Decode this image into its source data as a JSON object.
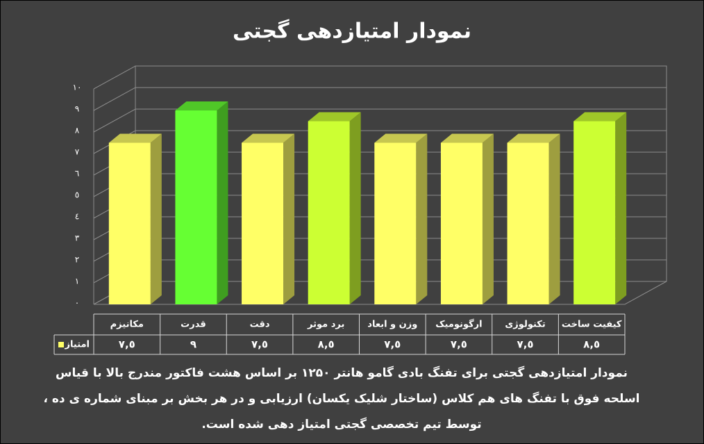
{
  "chart_data": {
    "type": "bar3d",
    "title": "نمودار امتیازدهی گجتی",
    "categories": [
      "مکانیزم",
      "قدرت",
      "دقت",
      "برد موثر",
      "وزن و ابعاد",
      "ارگونومیک",
      "تکنولوژی",
      "کیفیت ساخت"
    ],
    "series": [
      {
        "name": "امتیاز",
        "color": "#ffff66",
        "values": [
          7.5,
          9,
          7.5,
          8.5,
          7.5,
          7.5,
          7.5,
          8.5
        ],
        "value_labels": [
          "٧,٥",
          "٩",
          "٧,٥",
          "٨,٥",
          "٧,٥",
          "٧,٥",
          "٧,٥",
          "٨,٥"
        ],
        "colors": [
          "#ffff66",
          "#66ff33",
          "#ffff66",
          "#ccff33",
          "#ffff66",
          "#ffff66",
          "#ffff66",
          "#ccff33"
        ]
      }
    ],
    "ylim": [
      0,
      10
    ],
    "yticks": [
      {
        "value": 0,
        "label": "٠"
      },
      {
        "value": 1,
        "label": "١"
      },
      {
        "value": 2,
        "label": "٢"
      },
      {
        "value": 3,
        "label": "٣"
      },
      {
        "value": 4,
        "label": "٤"
      },
      {
        "value": 5,
        "label": "٥"
      },
      {
        "value": 6,
        "label": "٦"
      },
      {
        "value": 7,
        "label": "٧"
      },
      {
        "value": 8,
        "label": "٨"
      },
      {
        "value": 9,
        "label": "٩"
      },
      {
        "value": 10,
        "label": "١٠"
      }
    ],
    "grid": true,
    "caption": [
      "نمودار امتیازدهی گجتی برای تفنگ بادی گامو هانتر ۱۲۵۰ بر اساس هشت فاکتور مندرج بالا با قیاس",
      "اسلحه فوق با تفنگ های هم کلاس (ساختار شلیک یکسان) ارزیابی و در هر بخش بر مبنای شماره ی ده ،",
      "توسط تیم تخصصی گجتی امتیاز دهی شده است."
    ]
  }
}
